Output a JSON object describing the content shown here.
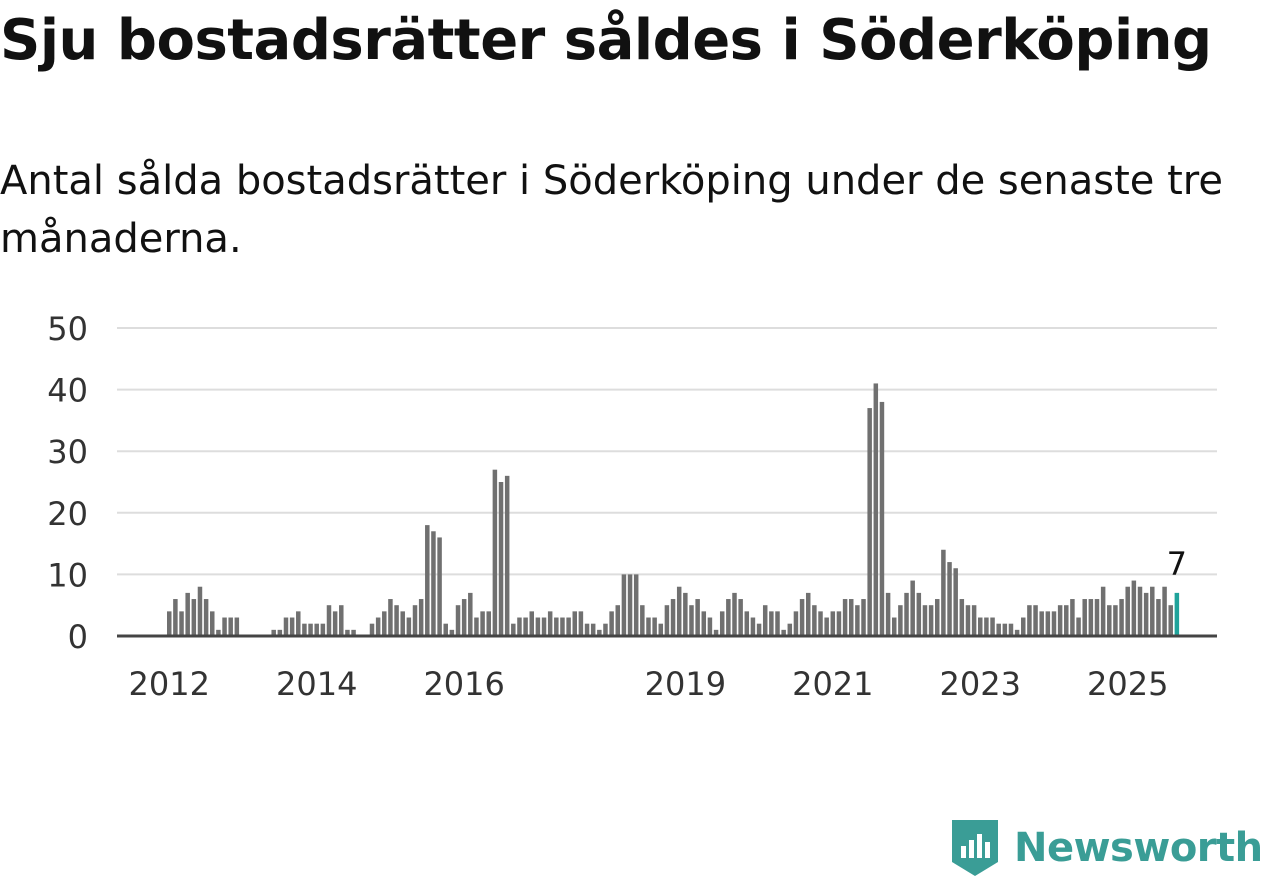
{
  "title": "Sju bostadsrätter såldes i Söderköping",
  "subtitle": "Antal sålda bostadsrätter i Söderköping under de senaste tre månaderna.",
  "brand": {
    "name": "Newsworthy",
    "icon": "newsworthy-logo-icon",
    "color": "#3a9d96"
  },
  "chart_data": {
    "type": "bar",
    "title": "",
    "xlabel": "",
    "ylabel": "",
    "ylim": [
      0,
      50
    ],
    "yticks": [
      0,
      10,
      20,
      30,
      40,
      50
    ],
    "xticks": [
      "2012",
      "2014",
      "2016",
      "2019",
      "2021",
      "2023",
      "2025"
    ],
    "grid": true,
    "bar_color": "#707070",
    "highlight_color": "#20a39b",
    "highlight_label": "7",
    "values": [
      4,
      6,
      4,
      7,
      6,
      8,
      6,
      4,
      1,
      3,
      3,
      3,
      0,
      0,
      0,
      0,
      0,
      1,
      1,
      3,
      3,
      4,
      2,
      2,
      2,
      2,
      5,
      4,
      5,
      1,
      1,
      0,
      0,
      2,
      3,
      4,
      6,
      5,
      4,
      3,
      5,
      6,
      18,
      17,
      16,
      2,
      1,
      5,
      6,
      7,
      3,
      4,
      4,
      27,
      25,
      26,
      2,
      3,
      3,
      4,
      3,
      3,
      4,
      3,
      3,
      3,
      4,
      4,
      2,
      2,
      1,
      2,
      4,
      5,
      10,
      10,
      10,
      5,
      3,
      3,
      2,
      5,
      6,
      8,
      7,
      5,
      6,
      4,
      3,
      1,
      4,
      6,
      7,
      6,
      4,
      3,
      2,
      5,
      4,
      4,
      1,
      2,
      4,
      6,
      7,
      5,
      4,
      3,
      4,
      4,
      6,
      6,
      5,
      6,
      37,
      41,
      38,
      7,
      3,
      5,
      7,
      9,
      7,
      5,
      5,
      6,
      14,
      12,
      11,
      6,
      5,
      5,
      3,
      3,
      3,
      2,
      2,
      2,
      1,
      3,
      5,
      5,
      4,
      4,
      4,
      5,
      5,
      6,
      3,
      6,
      6,
      6,
      8,
      5,
      5,
      6,
      8,
      9,
      8,
      7,
      8,
      6,
      8,
      5,
      7
    ]
  }
}
